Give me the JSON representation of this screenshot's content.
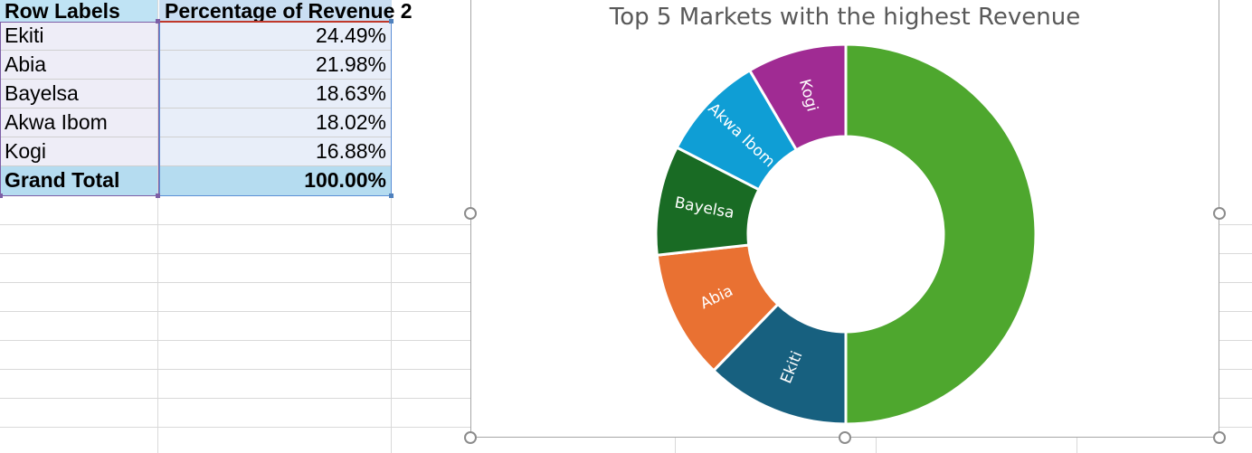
{
  "pivot_table": {
    "header": {
      "row_labels": "Row Labels",
      "value_field": "Percentage of Revenue 2"
    },
    "rows": [
      {
        "label": "Ekiti",
        "value": "24.49%"
      },
      {
        "label": "Abia",
        "value": "21.98%"
      },
      {
        "label": "Bayelsa",
        "value": "18.63%"
      },
      {
        "label": "Akwa Ibom",
        "value": "18.02%"
      },
      {
        "label": "Kogi",
        "value": "16.88%"
      }
    ],
    "total": {
      "label": "Grand Total",
      "value": "100.00%"
    }
  },
  "chart_data": {
    "type": "pie",
    "variant": "doughnut",
    "title": "Top 5 Markets with the highest Revenue",
    "categories": [
      "Ekiti",
      "Abia",
      "Bayelsa",
      "Akwa Ibom",
      "Kogi"
    ],
    "values": [
      24.49,
      21.98,
      18.63,
      18.02,
      16.88
    ],
    "colors": [
      "#17607f",
      "#e97132",
      "#196b24",
      "#0f9ed5",
      "#a02b93",
      "#4ea72e"
    ],
    "data_labels": [
      "Ekiti",
      "Abia",
      "Bayelsa",
      "Akwa Ibom",
      "Kogi"
    ],
    "legend": "none"
  }
}
